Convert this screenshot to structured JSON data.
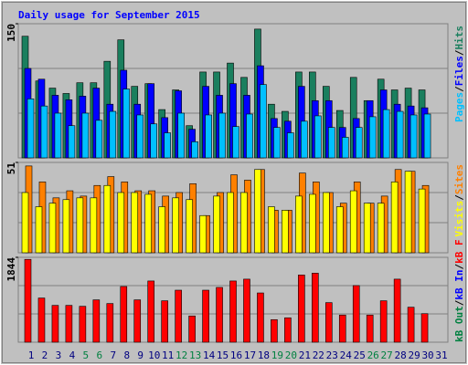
{
  "chart_data": [
    {
      "type": "bar",
      "title": "Daily usage for September 2015",
      "ylim": [
        0,
        150
      ],
      "yticks": [
        150
      ],
      "separator": "/",
      "series": [
        {
          "name": "Hits",
          "color": "#1a7f5e",
          "values": [
            136,
            86,
            78,
            72,
            84,
            84,
            108,
            132,
            80,
            83,
            54,
            76,
            36,
            96,
            96,
            106,
            90,
            144,
            60,
            52,
            96,
            96,
            80,
            53,
            90,
            64,
            88,
            76,
            78,
            76,
            null
          ]
        },
        {
          "name": "Files",
          "color": "#0000ff",
          "values": [
            100,
            88,
            70,
            65,
            69,
            78,
            60,
            98,
            60,
            83,
            45,
            75,
            32,
            80,
            70,
            83,
            70,
            103,
            44,
            41,
            80,
            64,
            64,
            34,
            44,
            64,
            76,
            60,
            58,
            56,
            null
          ]
        },
        {
          "name": "Pages",
          "color": "#00c0ff",
          "values": [
            66,
            58,
            50,
            36,
            50,
            42,
            52,
            77,
            48,
            38,
            28,
            50,
            18,
            48,
            50,
            35,
            49,
            82,
            34,
            28,
            41,
            47,
            34,
            23,
            34,
            46,
            54,
            52,
            48,
            49,
            null
          ]
        }
      ]
    },
    {
      "type": "bar",
      "ylim": [
        0,
        51
      ],
      "yticks": [
        51
      ],
      "separator": "/",
      "series": [
        {
          "name": "Sites",
          "color": "#ff8000",
          "values": [
            49,
            40,
            31,
            35,
            32,
            38,
            43,
            40,
            35,
            35,
            32,
            34,
            39,
            21,
            34,
            44,
            41,
            47,
            24,
            24,
            45,
            40,
            34,
            28,
            40,
            28,
            32,
            47,
            46,
            38,
            null
          ]
        },
        {
          "name": "Visits",
          "color": "#ffff00",
          "values": [
            34,
            26,
            28,
            30,
            31,
            31,
            38,
            34,
            34,
            33,
            26,
            31,
            30,
            21,
            32,
            34,
            34,
            47,
            26,
            24,
            32,
            33,
            34,
            26,
            35,
            28,
            28,
            40,
            46,
            36,
            null
          ]
        }
      ]
    },
    {
      "type": "bar",
      "ylim": [
        0,
        1844
      ],
      "yticks": [
        1844
      ],
      "separator": "/",
      "categories": [
        "1",
        "2",
        "3",
        "4",
        "5",
        "6",
        "7",
        "8",
        "9",
        "10",
        "11",
        "12",
        "13",
        "14",
        "15",
        "16",
        "17",
        "18",
        "19",
        "20",
        "21",
        "22",
        "23",
        "24",
        "25",
        "26",
        "27",
        "28",
        "29",
        "30",
        "31"
      ],
      "category_colors": [
        "#000080",
        "#000080",
        "#000080",
        "#000080",
        "#008040",
        "#008040",
        "#000080",
        "#000080",
        "#000080",
        "#000080",
        "#000080",
        "#008040",
        "#008040",
        "#000080",
        "#000080",
        "#000080",
        "#000080",
        "#000080",
        "#008040",
        "#008040",
        "#000080",
        "#000080",
        "#000080",
        "#000080",
        "#000080",
        "#008040",
        "#008040",
        "#000080",
        "#000080",
        "#000080",
        "#000080"
      ],
      "series": [
        {
          "name": "kB F",
          "color": "#ff0000",
          "values": [
            1800,
            960,
            800,
            800,
            780,
            920,
            840,
            1210,
            920,
            1330,
            900,
            1130,
            570,
            1130,
            1190,
            1330,
            1370,
            1070,
            490,
            530,
            1460,
            1500,
            860,
            590,
            1230,
            590,
            900,
            1370,
            760,
            620,
            null
          ]
        }
      ],
      "legend": [
        {
          "name": "kB In",
          "color": "#0000ff"
        },
        {
          "name": "kB Out",
          "color": "#008040"
        }
      ]
    }
  ]
}
